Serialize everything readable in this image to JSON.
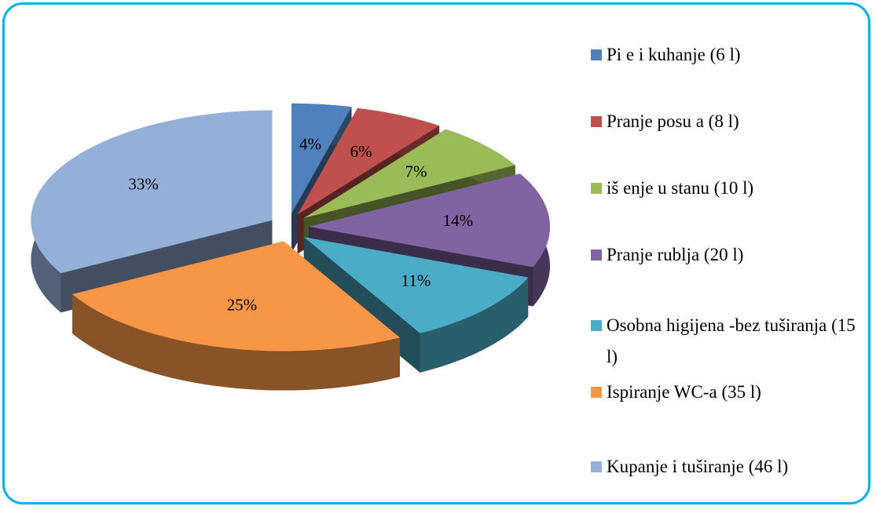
{
  "chart_data": {
    "type": "pie",
    "categories": [
      "Pi e i kuhanje (6 l)",
      "Pranje posu a (8 l)",
      "iš enje u stanu (10 l)",
      "Pranje rublja (20 l)",
      "Osobna higijena -bez tuširanja (15 l)",
      "Ispiranje WC-a (35 l)",
      "Kupanje i tuširanje (46 l)"
    ],
    "values": [
      4,
      6,
      7,
      14,
      11,
      25,
      33
    ],
    "value_labels": [
      "4%",
      "6%",
      "7%",
      "14%",
      "11%",
      "25%",
      "33%"
    ],
    "colors": [
      "#4f81bd",
      "#c0504d",
      "#9bbb59",
      "#8064a2",
      "#4bacc6",
      "#f79646",
      "#95b0d8"
    ],
    "legend": "right"
  }
}
